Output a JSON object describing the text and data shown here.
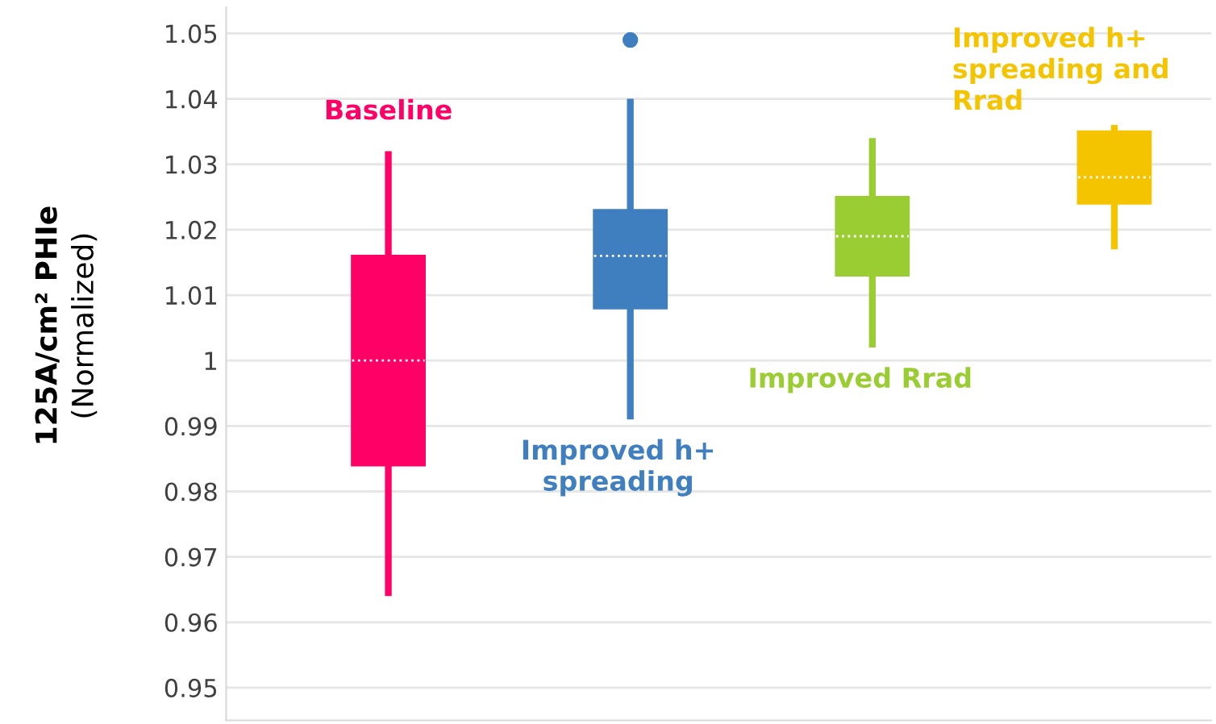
{
  "chart_data": {
    "type": "box",
    "ylabel": "125A/cm² PHIe\n(Normalized)",
    "categories": [
      null,
      null,
      null,
      null
    ],
    "series": [
      {
        "name": "Baseline",
        "color": "#ff0066",
        "boxes": [
          {
            "low": 0.964,
            "q1": 0.984,
            "median": 1.0,
            "q3": 1.016,
            "high": 1.032
          },
          null,
          null,
          null
        ]
      },
      {
        "name": "Improved h+\nspreading",
        "color": "#3f7fbf",
        "boxes": [
          null,
          {
            "low": 0.991,
            "q1": 1.008,
            "median": 1.016,
            "q3": 1.023,
            "high": 1.04,
            "outliers": [
              1.049
            ]
          },
          null,
          null
        ]
      },
      {
        "name": "Improved Rrad",
        "color": "#9acd32",
        "boxes": [
          null,
          null,
          {
            "low": 1.002,
            "q1": 1.013,
            "median": 1.019,
            "q3": 1.025,
            "high": 1.034
          },
          null
        ]
      },
      {
        "name": "Improved h+\nspreading and\nRrad",
        "color": "#f5c400",
        "boxes": [
          null,
          null,
          null,
          {
            "low": 1.017,
            "q1": 1.024,
            "median": 1.028,
            "q3": 1.035,
            "high": 1.036
          }
        ]
      }
    ],
    "ylim": [
      0.945,
      1.054
    ],
    "yticks": [
      0.95,
      0.96,
      0.97,
      0.98,
      0.99,
      1,
      1.01,
      1.02,
      1.03,
      1.04,
      1.05
    ],
    "grid": "y",
    "legend": false
  }
}
